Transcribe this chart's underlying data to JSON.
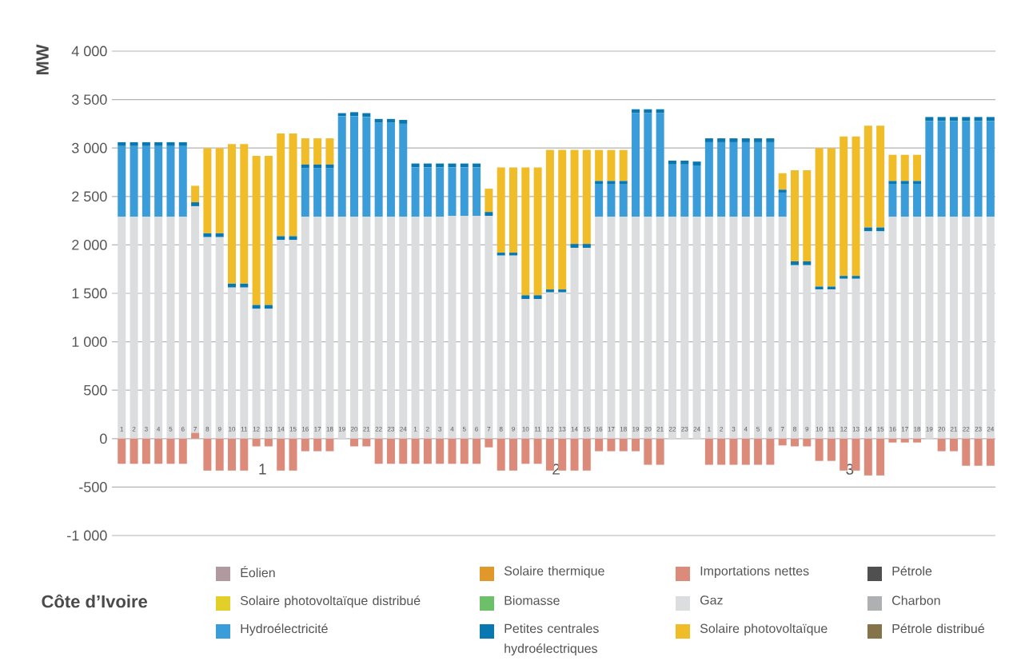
{
  "chart_data": {
    "type": "bar",
    "title": "Côte d’Ivoire",
    "ylabel": "MW",
    "stacked": true,
    "grid": "y",
    "legend": "bottom",
    "categories": [
      "1",
      "2",
      "3",
      "4",
      "5",
      "6",
      "7",
      "8",
      "9",
      "10",
      "11",
      "12",
      "13",
      "14",
      "15",
      "16",
      "17",
      "18",
      "19",
      "20",
      "21",
      "22",
      "23",
      "24",
      "1",
      "2",
      "3",
      "4",
      "5",
      "6",
      "7",
      "8",
      "9",
      "10",
      "11",
      "12",
      "13",
      "14",
      "15",
      "16",
      "17",
      "18",
      "19",
      "20",
      "21",
      "22",
      "23",
      "24",
      "1",
      "2",
      "3",
      "4",
      "5",
      "6",
      "7",
      "8",
      "9",
      "10",
      "11",
      "12",
      "13",
      "14",
      "15",
      "16",
      "17",
      "18",
      "19",
      "20",
      "21",
      "22",
      "23",
      "24"
    ],
    "ylim": [
      -1000,
      4000
    ],
    "yticks": [
      {
        "value": -1000,
        "label": "-1 000"
      },
      -500,
      0,
      500,
      {
        "value": 1000,
        "label": "1 000"
      },
      {
        "value": 1500,
        "label": "1 500"
      },
      {
        "value": 2000,
        "label": "2 000"
      },
      {
        "value": 2500,
        "label": "2 500"
      },
      {
        "value": 3000,
        "label": "3 000"
      },
      {
        "value": 3500,
        "label": "3 500"
      },
      {
        "value": 4000,
        "label": "4 000"
      }
    ],
    "annotations": [
      "1",
      "2",
      "3"
    ],
    "series": [
      {
        "name": "Éolien",
        "color": "#b09a9f",
        "values": [
          null,
          null,
          null,
          null,
          null,
          null,
          null,
          null,
          null,
          null,
          null,
          null,
          null,
          null,
          null,
          null,
          null,
          null,
          null,
          null,
          null,
          null,
          null,
          null,
          null,
          null,
          null,
          null,
          null,
          null,
          null,
          null,
          null,
          null,
          null,
          null,
          null,
          null,
          null,
          null,
          null,
          null,
          null,
          null,
          null,
          null,
          null,
          null,
          null,
          null,
          null,
          null,
          null,
          null,
          null,
          null,
          null,
          null,
          null,
          null,
          null,
          null,
          null,
          null,
          null,
          null,
          null,
          null,
          null,
          null,
          null,
          null
        ]
      },
      {
        "name": "Solaire thermique",
        "color": "#e0982a",
        "values": [
          null,
          null,
          null,
          null,
          null,
          null,
          null,
          null,
          null,
          null,
          null,
          null,
          null,
          null,
          null,
          null,
          null,
          null,
          null,
          null,
          null,
          null,
          null,
          null,
          null,
          null,
          null,
          null,
          null,
          null,
          null,
          null,
          null,
          null,
          null,
          null,
          null,
          null,
          null,
          null,
          null,
          null,
          null,
          null,
          null,
          null,
          null,
          null,
          null,
          null,
          null,
          null,
          null,
          null,
          null,
          null,
          null,
          null,
          null,
          null,
          null,
          null,
          null,
          null,
          null,
          null,
          null,
          null,
          null,
          null,
          null,
          null
        ]
      },
      {
        "name": "Importations nettes",
        "color": "#dc8b7b",
        "values": [
          -260,
          -260,
          -260,
          -260,
          -260,
          -260,
          60,
          -330,
          -330,
          -330,
          -330,
          -80,
          -80,
          -330,
          -330,
          -130,
          -130,
          -130,
          0,
          -80,
          -80,
          -260,
          -260,
          -260,
          -260,
          -260,
          -260,
          -260,
          -260,
          -260,
          -90,
          -330,
          -330,
          -260,
          -260,
          -330,
          -330,
          -330,
          -330,
          -130,
          -130,
          -130,
          -130,
          -270,
          -270,
          0,
          0,
          0,
          -270,
          -270,
          -270,
          -270,
          -270,
          -270,
          -70,
          -80,
          -80,
          -230,
          -230,
          -330,
          -330,
          -380,
          -380,
          -40,
          -40,
          -40,
          0,
          -130,
          -130,
          -280,
          -280,
          -280
        ]
      },
      {
        "name": "Pétrole",
        "color": "#505050",
        "values": [
          null,
          null,
          null,
          null,
          null,
          null,
          null,
          null,
          null,
          null,
          null,
          null,
          null,
          null,
          null,
          null,
          null,
          null,
          null,
          null,
          null,
          null,
          null,
          null,
          null,
          null,
          null,
          null,
          null,
          null,
          null,
          null,
          null,
          null,
          null,
          null,
          null,
          null,
          null,
          null,
          null,
          null,
          null,
          null,
          null,
          null,
          null,
          null,
          null,
          null,
          null,
          null,
          null,
          null,
          null,
          null,
          null,
          null,
          null,
          null,
          null,
          null,
          null,
          null,
          null,
          null,
          null,
          null,
          null,
          null,
          null,
          null
        ]
      },
      {
        "name": "Solaire photovoltaïque distribué",
        "color": "#e2cf2a",
        "values": [
          null,
          null,
          null,
          null,
          null,
          null,
          null,
          null,
          null,
          null,
          null,
          null,
          null,
          null,
          null,
          null,
          null,
          null,
          null,
          null,
          null,
          null,
          null,
          null,
          null,
          null,
          null,
          null,
          null,
          null,
          null,
          null,
          null,
          null,
          null,
          null,
          null,
          null,
          null,
          null,
          null,
          null,
          null,
          null,
          null,
          null,
          null,
          null,
          null,
          null,
          null,
          null,
          null,
          null,
          null,
          null,
          null,
          null,
          null,
          null,
          null,
          null,
          null,
          null,
          null,
          null,
          null,
          null,
          null,
          null,
          null,
          null
        ]
      },
      {
        "name": "Biomasse",
        "color": "#6dbf6a",
        "values": [
          null,
          null,
          null,
          null,
          null,
          null,
          null,
          null,
          null,
          null,
          null,
          null,
          null,
          null,
          null,
          null,
          null,
          null,
          null,
          null,
          null,
          null,
          null,
          null,
          null,
          null,
          null,
          null,
          null,
          null,
          null,
          null,
          null,
          null,
          null,
          null,
          null,
          null,
          null,
          null,
          null,
          null,
          null,
          null,
          null,
          null,
          null,
          null,
          null,
          null,
          null,
          null,
          null,
          null,
          null,
          null,
          null,
          null,
          null,
          null,
          null,
          null,
          null,
          null,
          null,
          null,
          null,
          null,
          null,
          null,
          null,
          null
        ]
      },
      {
        "name": "Gaz",
        "color": "#dcdddf",
        "values": [
          2290,
          2290,
          2290,
          2290,
          2290,
          2290,
          2340,
          2080,
          2080,
          1560,
          1560,
          1340,
          1340,
          2050,
          2050,
          2290,
          2290,
          2290,
          2290,
          2290,
          2290,
          2290,
          2290,
          2290,
          2290,
          2290,
          2290,
          2300,
          2300,
          2300,
          2300,
          1890,
          1890,
          1440,
          1440,
          1510,
          1510,
          1970,
          1970,
          2290,
          2290,
          2290,
          2290,
          2290,
          2290,
          2290,
          2290,
          2290,
          2290,
          2290,
          2290,
          2290,
          2290,
          2290,
          2290,
          1790,
          1790,
          1540,
          1540,
          1650,
          1650,
          2140,
          2140,
          2290,
          2290,
          2290,
          2290,
          2290,
          2290,
          2290,
          2290,
          2290
        ]
      },
      {
        "name": "Charbon",
        "color": "#aeb0b2",
        "values": [
          null,
          null,
          null,
          null,
          null,
          null,
          null,
          null,
          null,
          null,
          null,
          null,
          null,
          null,
          null,
          null,
          null,
          null,
          null,
          null,
          null,
          null,
          null,
          null,
          null,
          null,
          null,
          null,
          null,
          null,
          null,
          null,
          null,
          null,
          null,
          null,
          null,
          null,
          null,
          null,
          null,
          null,
          null,
          null,
          null,
          null,
          null,
          null,
          null,
          null,
          null,
          null,
          null,
          null,
          null,
          null,
          null,
          null,
          null,
          null,
          null,
          null,
          null,
          null,
          null,
          null,
          null,
          null,
          null,
          null,
          null,
          null
        ]
      },
      {
        "name": "Hydroélectricité",
        "color": "#3a9cd8",
        "values": [
          730,
          730,
          730,
          730,
          730,
          730,
          null,
          null,
          null,
          null,
          null,
          null,
          null,
          null,
          null,
          500,
          500,
          500,
          1040,
          1040,
          1030,
          970,
          970,
          960,
          510,
          510,
          510,
          500,
          500,
          500,
          null,
          null,
          null,
          null,
          null,
          null,
          null,
          null,
          null,
          340,
          340,
          340,
          1070,
          1070,
          1070,
          540,
          540,
          530,
          770,
          770,
          770,
          770,
          770,
          770,
          250,
          null,
          null,
          null,
          null,
          null,
          null,
          null,
          null,
          340,
          340,
          340,
          990,
          990,
          990,
          990,
          990,
          990
        ]
      },
      {
        "name": "Petites centrales hydroélectriques",
        "color": "#0a78b0",
        "values": [
          40,
          40,
          40,
          40,
          40,
          40,
          40,
          40,
          40,
          40,
          40,
          40,
          40,
          40,
          40,
          40,
          40,
          40,
          30,
          40,
          40,
          40,
          40,
          40,
          40,
          40,
          40,
          40,
          40,
          40,
          40,
          30,
          30,
          40,
          40,
          30,
          30,
          40,
          40,
          30,
          30,
          30,
          40,
          40,
          40,
          40,
          40,
          40,
          40,
          40,
          40,
          40,
          40,
          40,
          30,
          40,
          40,
          30,
          30,
          30,
          30,
          40,
          40,
          30,
          30,
          30,
          40,
          40,
          40,
          40,
          40,
          40
        ]
      },
      {
        "name": "Solaire photovoltaïque",
        "color": "#f0bc28",
        "values": [
          null,
          null,
          null,
          null,
          null,
          null,
          170,
          880,
          880,
          1440,
          1440,
          1540,
          1540,
          1060,
          1060,
          270,
          270,
          270,
          null,
          null,
          null,
          null,
          null,
          null,
          null,
          null,
          null,
          null,
          null,
          null,
          240,
          880,
          880,
          1320,
          1320,
          1440,
          1440,
          970,
          970,
          320,
          320,
          320,
          null,
          null,
          null,
          null,
          null,
          null,
          null,
          null,
          null,
          null,
          null,
          null,
          170,
          940,
          940,
          1430,
          1430,
          1440,
          1440,
          1050,
          1050,
          270,
          270,
          270,
          null,
          null,
          null,
          null,
          null,
          null
        ]
      },
      {
        "name": "Pétrole distribué",
        "color": "#857448",
        "values": [
          null,
          null,
          null,
          null,
          null,
          null,
          null,
          null,
          null,
          null,
          null,
          null,
          null,
          null,
          null,
          null,
          null,
          null,
          null,
          null,
          null,
          null,
          null,
          null,
          null,
          null,
          null,
          null,
          null,
          null,
          null,
          null,
          null,
          null,
          null,
          null,
          null,
          null,
          null,
          null,
          null,
          null,
          null,
          null,
          null,
          null,
          null,
          null,
          null,
          null,
          null,
          null,
          null,
          null,
          null,
          null,
          null,
          null,
          null,
          null,
          null,
          null,
          null,
          null,
          null,
          null,
          null,
          null,
          null,
          null,
          null,
          null
        ]
      }
    ]
  }
}
